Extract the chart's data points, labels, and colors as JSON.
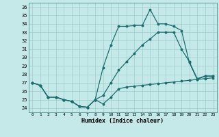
{
  "xlabel": "Humidex (Indice chaleur)",
  "xlim": [
    -0.5,
    23.5
  ],
  "ylim": [
    23.5,
    36.5
  ],
  "xticks": [
    0,
    1,
    2,
    3,
    4,
    5,
    6,
    7,
    8,
    9,
    10,
    11,
    12,
    13,
    14,
    15,
    16,
    17,
    18,
    19,
    20,
    21,
    22,
    23
  ],
  "yticks": [
    24,
    25,
    26,
    27,
    28,
    29,
    30,
    31,
    32,
    33,
    34,
    35,
    36
  ],
  "background_color": "#c5e8e8",
  "grid_color": "#9ecece",
  "line_color": "#1a6e6e",
  "line1_y": [
    27.0,
    26.7,
    25.3,
    25.3,
    25.0,
    24.8,
    24.2,
    24.1,
    25.0,
    24.5,
    25.3,
    26.3,
    26.5,
    26.6,
    26.7,
    26.8,
    26.9,
    27.0,
    27.1,
    27.2,
    27.3,
    27.4,
    27.5,
    27.6
  ],
  "line2_y": [
    27.0,
    26.7,
    25.3,
    25.3,
    25.0,
    24.8,
    24.2,
    24.1,
    25.0,
    25.5,
    27.0,
    28.5,
    29.5,
    30.5,
    31.5,
    32.2,
    33.0,
    33.0,
    33.0,
    31.0,
    29.5,
    27.5,
    27.8,
    27.8
  ],
  "line3_y": [
    27.0,
    26.7,
    25.3,
    25.3,
    25.0,
    24.8,
    24.2,
    24.1,
    25.0,
    28.8,
    31.5,
    33.7,
    33.7,
    33.8,
    33.8,
    35.7,
    34.0,
    34.0,
    33.7,
    33.2,
    29.4,
    27.4,
    27.8,
    27.8
  ]
}
